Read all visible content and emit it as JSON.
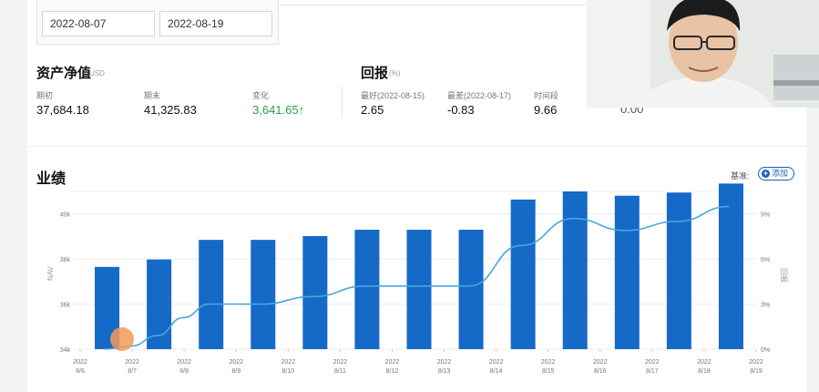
{
  "date_range": {
    "start": "2022-08-07",
    "end": "2022-08-19"
  },
  "nav_section": {
    "title": "资产净值",
    "unit": "USD",
    "stats": [
      {
        "label": "期初",
        "value": "37,684.18"
      },
      {
        "label": "期末",
        "value": "41,325.83"
      },
      {
        "label": "变化",
        "value": "3,641.65",
        "arrow": "↑"
      }
    ]
  },
  "return_section": {
    "title": "回报",
    "unit": "(%)",
    "stats": [
      {
        "label": "最好(2022-08-15)",
        "value": "2.65"
      },
      {
        "label": "最差(2022-08-17)",
        "value": "-0.83"
      },
      {
        "label": "时间段",
        "value": "9.66"
      }
    ],
    "partial_value": "0.00"
  },
  "performance": {
    "title": "业绩",
    "benchmark_label": "基准:",
    "add_button": "添加",
    "colors": {
      "bar": "#1569c7",
      "line": "#4aa6d9"
    }
  },
  "chart_data": {
    "type": "bar",
    "title": "",
    "ylabel": "NAV",
    "y2label": "回报",
    "ylim": [
      34000,
      41000
    ],
    "y2lim": [
      0,
      10.5
    ],
    "y_ticks": [
      "34k",
      "36k",
      "38k",
      "40k"
    ],
    "y2_ticks": [
      "0%",
      "3%",
      "6%",
      "9%"
    ],
    "x_ticks": [
      {
        "year": "2022",
        "day": "8/6"
      },
      {
        "year": "2022",
        "day": "8/7"
      },
      {
        "year": "2022",
        "day": "8/8"
      },
      {
        "year": "2022",
        "day": "8/9"
      },
      {
        "year": "2022",
        "day": "8/10"
      },
      {
        "year": "2022",
        "day": "8/11"
      },
      {
        "year": "2022",
        "day": "8/12"
      },
      {
        "year": "2022",
        "day": "8/13"
      },
      {
        "year": "2022",
        "day": "8/14"
      },
      {
        "year": "2022",
        "day": "8/15"
      },
      {
        "year": "2022",
        "day": "8/16"
      },
      {
        "year": "2022",
        "day": "8/17"
      },
      {
        "year": "2022",
        "day": "8/18"
      },
      {
        "year": "2022",
        "day": "8/19"
      }
    ],
    "series": [
      {
        "kind": "bar",
        "axis": "left",
        "categories": [
          "8/7",
          "8/8",
          "8/9",
          "8/10",
          "8/11",
          "8/12",
          "8/13",
          "8/14",
          "8/15",
          "8/16",
          "8/17",
          "8/18",
          "8/19"
        ],
        "values": [
          37650,
          37980,
          38850,
          38850,
          39020,
          39300,
          39300,
          39300,
          40640,
          41000,
          40810,
          40950,
          41350
        ]
      },
      {
        "kind": "line",
        "axis": "right",
        "x": [
          "8/7",
          "8/7.5",
          "8/8",
          "8/8.5",
          "8/9",
          "8/10",
          "8/11",
          "8/12",
          "8/13",
          "8/14",
          "8/15",
          "8/16",
          "8/17",
          "8/18",
          "8/19"
        ],
        "values": [
          0,
          0.2,
          0.9,
          2.1,
          3.0,
          3.0,
          3.5,
          4.2,
          4.2,
          4.2,
          6.9,
          8.7,
          7.9,
          8.5,
          9.5
        ]
      }
    ]
  }
}
